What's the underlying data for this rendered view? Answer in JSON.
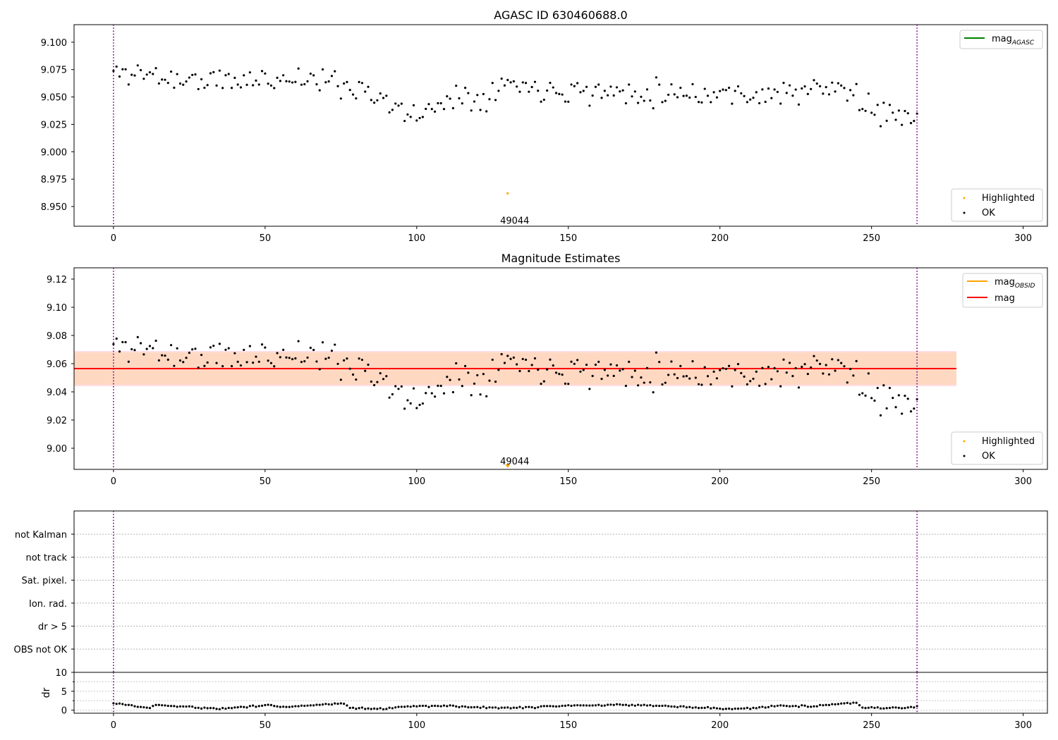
{
  "chart_data": [
    {
      "type": "scatter",
      "title": "AGASC ID 630460688.0",
      "xlim": [
        -13,
        308
      ],
      "ylim": [
        8.932,
        9.116
      ],
      "xticks": [
        0,
        50,
        100,
        150,
        200,
        250,
        300
      ],
      "yticks": [
        8.95,
        8.975,
        9.0,
        9.025,
        9.05,
        9.075,
        9.1
      ],
      "ytick_decimals": 3,
      "vlines": [
        0,
        265
      ],
      "legend_upper": {
        "placement": "top-right",
        "entries": [
          {
            "label": "mag",
            "subscript": "AGASC",
            "color": "#008000",
            "kind": "line"
          }
        ]
      },
      "legend_lower": {
        "placement": "bottom-right",
        "entries": [
          {
            "label": "Highlighted",
            "color": "#ffa500",
            "kind": "dot"
          },
          {
            "label": "OK",
            "color": "#000000",
            "kind": "dot"
          }
        ]
      },
      "highlighted": {
        "x": 130,
        "y": 8.962,
        "label": "49044",
        "label_y": 8.935
      },
      "series_seed": 11,
      "series_profile": [
        [
          0,
          9.072
        ],
        [
          10,
          9.072
        ],
        [
          20,
          9.066
        ],
        [
          40,
          9.064
        ],
        [
          60,
          9.068
        ],
        [
          75,
          9.062
        ],
        [
          85,
          9.056
        ],
        [
          95,
          9.034
        ],
        [
          105,
          9.036
        ],
        [
          110,
          9.052
        ],
        [
          120,
          9.05
        ],
        [
          130,
          9.063
        ],
        [
          140,
          9.058
        ],
        [
          150,
          9.058
        ],
        [
          160,
          9.054
        ],
        [
          180,
          9.055
        ],
        [
          200,
          9.053
        ],
        [
          220,
          9.053
        ],
        [
          240,
          9.058
        ],
        [
          244,
          9.054
        ],
        [
          250,
          9.034
        ],
        [
          265,
          9.038
        ]
      ]
    },
    {
      "type": "scatter",
      "title": "Magnitude Estimates",
      "xlim": [
        -13,
        308
      ],
      "ylim": [
        8.985,
        9.128
      ],
      "xticks": [
        0,
        50,
        100,
        150,
        200,
        250,
        300
      ],
      "yticks": [
        9.0,
        9.02,
        9.04,
        9.06,
        9.08,
        9.1,
        9.12
      ],
      "ytick_decimals": 2,
      "vlines": [
        0,
        265
      ],
      "mean_line": {
        "y": 9.0565,
        "x_end": 278,
        "color": "#ff0000"
      },
      "band_outer": {
        "y0": 9.044,
        "y1": 9.069,
        "x_end": 278,
        "color": "#ffdfe4"
      },
      "band_inner": {
        "y0": 9.045,
        "y1": 9.068,
        "x_end": 278,
        "color": "#ffd8c2"
      },
      "legend_upper": {
        "placement": "top-right",
        "entries": [
          {
            "label": "mag",
            "subscript": "OBSID",
            "color": "#ffa500",
            "kind": "line"
          },
          {
            "label": "mag",
            "subscript": "",
            "color": "#ff0000",
            "kind": "line"
          }
        ]
      },
      "legend_lower": {
        "placement": "bottom-right",
        "entries": [
          {
            "label": "Highlighted",
            "color": "#ffa500",
            "kind": "dot"
          },
          {
            "label": "OK",
            "color": "#000000",
            "kind": "dot"
          }
        ]
      },
      "highlighted": {
        "x": 130,
        "y": 8.986,
        "marker": "triangle-down",
        "label": "49044",
        "label_y": 8.991
      },
      "series_seed": 11,
      "series_profile": [
        [
          0,
          9.072
        ],
        [
          10,
          9.072
        ],
        [
          20,
          9.066
        ],
        [
          40,
          9.064
        ],
        [
          60,
          9.068
        ],
        [
          75,
          9.062
        ],
        [
          85,
          9.056
        ],
        [
          95,
          9.034
        ],
        [
          105,
          9.036
        ],
        [
          110,
          9.052
        ],
        [
          120,
          9.05
        ],
        [
          130,
          9.063
        ],
        [
          140,
          9.058
        ],
        [
          150,
          9.058
        ],
        [
          160,
          9.054
        ],
        [
          180,
          9.055
        ],
        [
          200,
          9.053
        ],
        [
          220,
          9.053
        ],
        [
          240,
          9.058
        ],
        [
          244,
          9.054
        ],
        [
          250,
          9.034
        ],
        [
          265,
          9.038
        ]
      ]
    },
    {
      "type": "table",
      "title": "",
      "xlim": [
        -13,
        308
      ],
      "vlines": [
        0,
        265
      ],
      "flags": [
        "not Kalman",
        "not track",
        "Sat. pixel.",
        "Ion. rad.",
        "dr > 5",
        "OBS not OK"
      ]
    },
    {
      "type": "scatter",
      "title": "",
      "ylabel": "dr",
      "xlim": [
        -13,
        308
      ],
      "ylim": [
        -0.8,
        10
      ],
      "xticks": [
        0,
        50,
        100,
        150,
        200,
        250,
        300
      ],
      "yticks": [
        0,
        5,
        10
      ],
      "minor_yticks": [
        2.5,
        7.5
      ],
      "vlines": [
        0,
        265
      ],
      "series_seed": 5,
      "series_profile": [
        [
          0,
          1.8
        ],
        [
          5,
          1.4
        ],
        [
          12,
          0.5
        ],
        [
          14,
          1.4
        ],
        [
          18,
          1.2
        ],
        [
          30,
          0.6
        ],
        [
          35,
          0.4
        ],
        [
          45,
          1.0
        ],
        [
          52,
          1.4
        ],
        [
          55,
          0.8
        ],
        [
          62,
          1.2
        ],
        [
          76,
          1.8
        ],
        [
          78,
          0.6
        ],
        [
          90,
          0.3
        ],
        [
          95,
          1.0
        ],
        [
          110,
          1.2
        ],
        [
          120,
          0.7
        ],
        [
          130,
          0.6
        ],
        [
          150,
          1.2
        ],
        [
          175,
          1.4
        ],
        [
          190,
          0.8
        ],
        [
          205,
          0.3
        ],
        [
          220,
          1.2
        ],
        [
          230,
          1.0
        ],
        [
          245,
          2.0
        ],
        [
          247,
          0.6
        ],
        [
          265,
          0.8
        ]
      ]
    }
  ]
}
